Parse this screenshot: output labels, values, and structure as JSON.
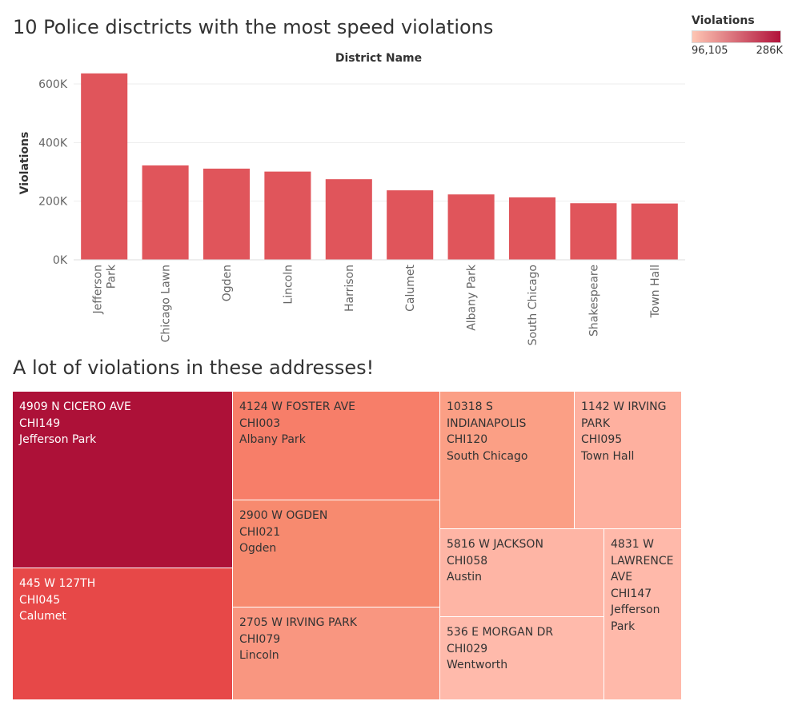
{
  "bar_section": {
    "title": "10 Police disctricts with the most speed violations"
  },
  "legend": {
    "title": "Violations",
    "min_label": "96,105",
    "max_label": "286K",
    "min_color": "#fec6b4",
    "max_color": "#b1123a"
  },
  "chart_data": [
    {
      "type": "bar",
      "title": "10 Police disctricts with the most speed violations",
      "xlabel": "District Name",
      "ylabel": "Violations",
      "ylim": [
        0,
        660000
      ],
      "yticks": [
        0,
        200000,
        400000,
        600000
      ],
      "ytick_labels": [
        "0K",
        "200K",
        "400K",
        "600K"
      ],
      "grid": "horizontal",
      "bar_color": "#e0555b",
      "categories": [
        "Jefferson Park",
        "Chicago Lawn",
        "Ogden",
        "Lincoln",
        "Harrison",
        "Calumet",
        "Albany Park",
        "South Chicago",
        "Shakespeare",
        "Town Hall"
      ],
      "category_lines": [
        [
          "Jefferson",
          "Park"
        ],
        [
          "Chicago Lawn"
        ],
        [
          "Ogden"
        ],
        [
          "Lincoln"
        ],
        [
          "Harrison"
        ],
        [
          "Calumet"
        ],
        [
          "Albany Park"
        ],
        [
          "South Chicago"
        ],
        [
          "Shakespeare"
        ],
        [
          "Town Hall"
        ]
      ],
      "values": [
        636000,
        322000,
        311000,
        301000,
        275000,
        237000,
        223000,
        213000,
        193000,
        192000
      ]
    },
    {
      "type": "treemap",
      "title": "A lot of violations in these addresses!",
      "color_measure": "Violations",
      "cells": [
        {
          "address": "4909 N CICERO AVE",
          "camera": "CHI149",
          "district": "Jefferson Park",
          "color": "#ad1138"
        },
        {
          "address": "445 W 127TH",
          "camera": "CHI045",
          "district": "Calumet",
          "color": "#e74848"
        },
        {
          "address": "4124 W FOSTER AVE",
          "camera": "CHI003",
          "district": "Albany Park",
          "color": "#f77e69"
        },
        {
          "address": "2900 W OGDEN",
          "camera": "CHI021",
          "district": "Ogden",
          "color": "#f78a6f"
        },
        {
          "address": "2705 W IRVING PARK",
          "camera": "CHI079",
          "district": "Lincoln",
          "color": "#f99680"
        },
        {
          "address": "10318 S INDIANAPOLIS",
          "camera": "CHI120",
          "district": "South Chicago",
          "color": "#fb9f85"
        },
        {
          "address": "1142 W IRVING PARK",
          "camera": "CHI095",
          "district": "Town Hall",
          "color": "#feb09f"
        },
        {
          "address": "5816 W JACKSON",
          "camera": "CHI058",
          "district": "Austin",
          "color": "#feb5a5"
        },
        {
          "address": "4831 W LAWRENCE AVE",
          "camera": "CHI147",
          "district": "Jefferson Park",
          "color": "#ffb9aa"
        },
        {
          "address": "536 E MORGAN DR",
          "camera": "CHI029",
          "district": "Wentworth",
          "color": "#ffbaab"
        }
      ]
    }
  ],
  "treemap_section": {
    "title": "A lot of violations in these addresses!"
  }
}
